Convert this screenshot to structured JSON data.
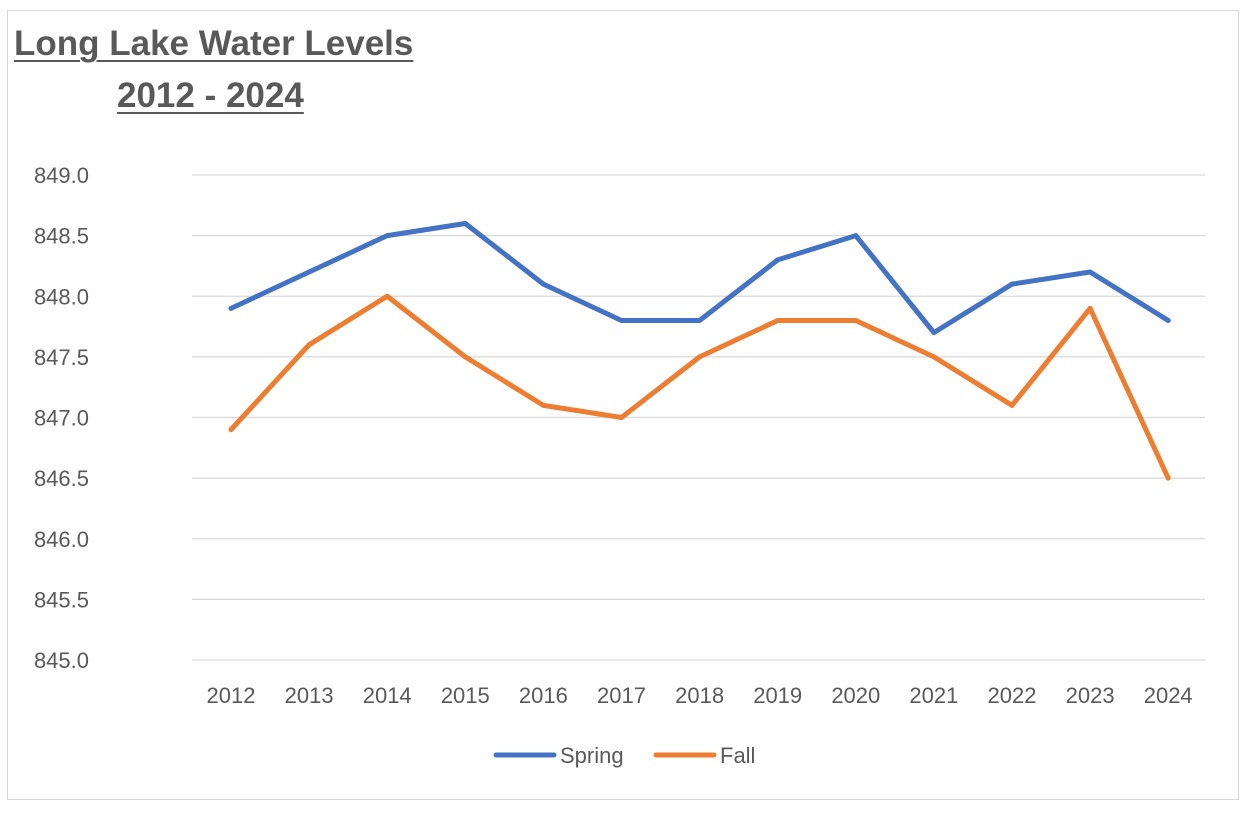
{
  "chart_data": {
    "type": "line",
    "title_line1": "Long Lake Water Levels",
    "title_line2": "2012 - 2024",
    "xlabel": "",
    "ylabel": "",
    "categories": [
      "2012",
      "2013",
      "2014",
      "2015",
      "2016",
      "2017",
      "2018",
      "2019",
      "2020",
      "2021",
      "2022",
      "2023",
      "2024"
    ],
    "ylim": [
      845.0,
      849.0
    ],
    "yticks": [
      "845.0",
      "845.5",
      "846.0",
      "846.5",
      "847.0",
      "847.5",
      "848.0",
      "848.5",
      "849.0"
    ],
    "grid": true,
    "legend_position": "bottom",
    "series": [
      {
        "name": "Spring",
        "color": "#4472C4",
        "values": [
          847.9,
          848.2,
          848.5,
          848.6,
          848.1,
          847.8,
          847.8,
          848.3,
          848.5,
          847.7,
          848.1,
          848.2,
          847.8
        ]
      },
      {
        "name": "Fall",
        "color": "#ED7D31",
        "values": [
          846.9,
          847.6,
          848.0,
          847.5,
          847.1,
          847.0,
          847.5,
          847.8,
          847.8,
          847.5,
          847.1,
          847.9,
          846.5
        ]
      }
    ]
  }
}
